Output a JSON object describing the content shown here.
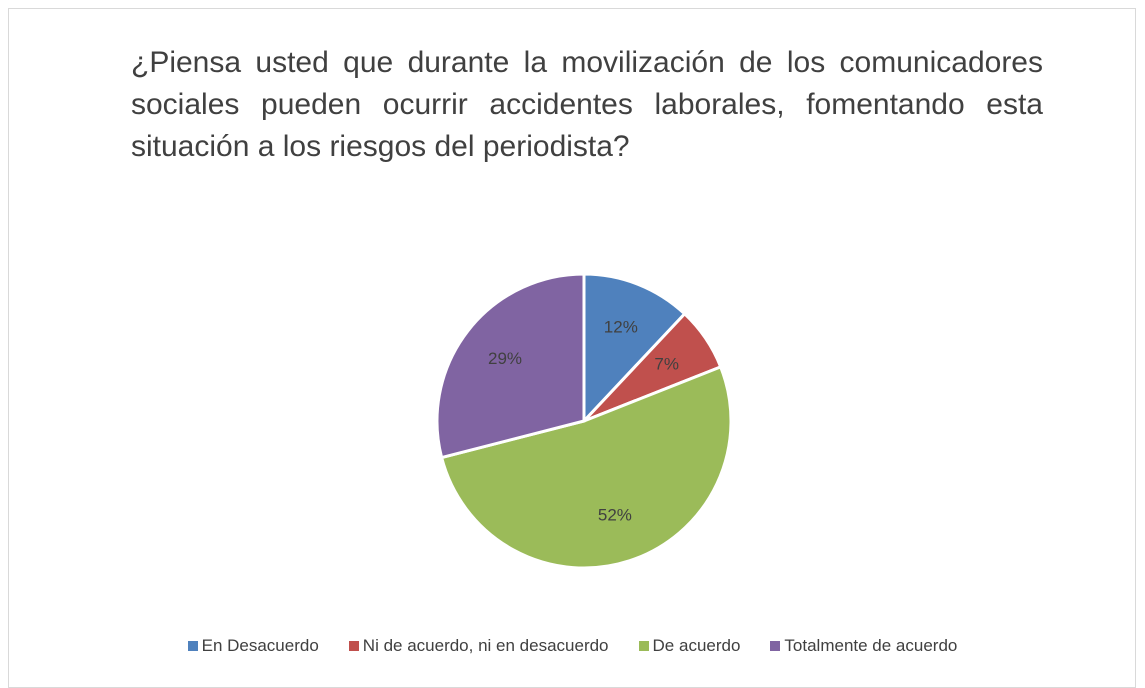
{
  "chart_data": {
    "type": "pie",
    "title": "¿Piensa usted que durante la movilización de los comunicadores sociales pueden ocurrir accidentes laborales, fomentando esta situación a los riesgos del periodista?",
    "categories": [
      "En Desacuerdo",
      "Ni de acuerdo, ni en desacuerdo",
      "De acuerdo",
      "Totalmente de acuerdo"
    ],
    "values": [
      12,
      7,
      52,
      29
    ],
    "value_labels": [
      "12%",
      "7%",
      "52%",
      "29%"
    ],
    "colors": [
      "#4f81bd",
      "#c0504d",
      "#9bbb59",
      "#8064a2"
    ],
    "legend": "bottom"
  }
}
